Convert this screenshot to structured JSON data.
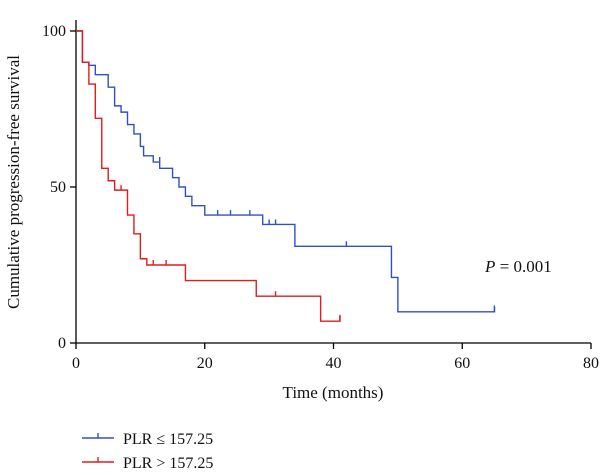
{
  "chart_data": {
    "type": "line",
    "step": true,
    "xlabel": "Time (months)",
    "ylabel": "Cumulative progression-free survival",
    "xlim": [
      0,
      80
    ],
    "ylim": [
      0,
      100
    ],
    "xticks": [
      0,
      20,
      40,
      60,
      80
    ],
    "yticks": [
      0,
      50,
      100
    ],
    "grid": false,
    "legend_position": "bottom-left",
    "annotation": {
      "italic_part": "P",
      "rest": " = 0.001"
    },
    "series": [
      {
        "name": "PLR ≤ 157.25",
        "color": "#3050c8",
        "points": [
          [
            0,
            100
          ],
          [
            1,
            100
          ],
          [
            1,
            90
          ],
          [
            2,
            90
          ],
          [
            2,
            89
          ],
          [
            3,
            89
          ],
          [
            3,
            86
          ],
          [
            5,
            86
          ],
          [
            5,
            82
          ],
          [
            6,
            82
          ],
          [
            6,
            76
          ],
          [
            7,
            76
          ],
          [
            7,
            74
          ],
          [
            8,
            74
          ],
          [
            8,
            70
          ],
          [
            9,
            70
          ],
          [
            9,
            67
          ],
          [
            10,
            67
          ],
          [
            10,
            63
          ],
          [
            10.5,
            63
          ],
          [
            10.5,
            60
          ],
          [
            12,
            60
          ],
          [
            12,
            58
          ],
          [
            13,
            58
          ],
          [
            13,
            56
          ],
          [
            15,
            56
          ],
          [
            15,
            53
          ],
          [
            16,
            53
          ],
          [
            16,
            50
          ],
          [
            17,
            50
          ],
          [
            17,
            47
          ],
          [
            18,
            47
          ],
          [
            18,
            44
          ],
          [
            20,
            44
          ],
          [
            20,
            41
          ],
          [
            29,
            41
          ],
          [
            29,
            38
          ],
          [
            34,
            38
          ],
          [
            34,
            31
          ],
          [
            49,
            31
          ],
          [
            49,
            21
          ],
          [
            50,
            21
          ],
          [
            50,
            10
          ],
          [
            65,
            10
          ],
          [
            65,
            12
          ]
        ],
        "censor_marks": [
          [
            13,
            58
          ],
          [
            22,
            41
          ],
          [
            24,
            41
          ],
          [
            27,
            41
          ],
          [
            30,
            38
          ],
          [
            31,
            38
          ],
          [
            42,
            31
          ],
          [
            65,
            10
          ]
        ]
      },
      {
        "name": "PLR > 157.25",
        "color": "#e21c1c",
        "points": [
          [
            0,
            100
          ],
          [
            1,
            100
          ],
          [
            1,
            90
          ],
          [
            2,
            90
          ],
          [
            2,
            83
          ],
          [
            3,
            83
          ],
          [
            3,
            72
          ],
          [
            4,
            72
          ],
          [
            4,
            56
          ],
          [
            5,
            56
          ],
          [
            5,
            52
          ],
          [
            6,
            52
          ],
          [
            6,
            49
          ],
          [
            8,
            49
          ],
          [
            8,
            41
          ],
          [
            9,
            41
          ],
          [
            9,
            35
          ],
          [
            10,
            35
          ],
          [
            10,
            27
          ],
          [
            11,
            27
          ],
          [
            11,
            25
          ],
          [
            17,
            25
          ],
          [
            17,
            20
          ],
          [
            28,
            20
          ],
          [
            28,
            15
          ],
          [
            38,
            15
          ],
          [
            38,
            7
          ],
          [
            41,
            7
          ],
          [
            41,
            9
          ]
        ],
        "censor_marks": [
          [
            7,
            49
          ],
          [
            12,
            25
          ],
          [
            14,
            25
          ],
          [
            31,
            15
          ],
          [
            41,
            7
          ]
        ]
      }
    ]
  }
}
